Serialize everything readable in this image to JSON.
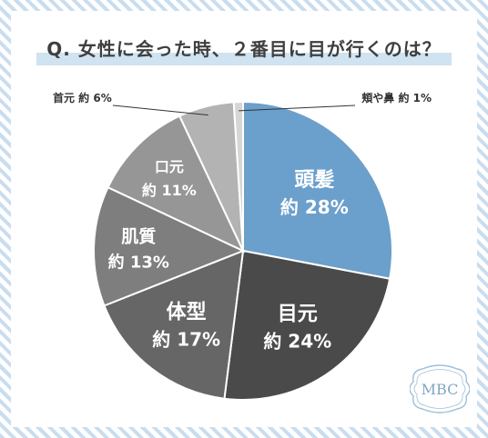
{
  "chart_data": {
    "type": "pie",
    "title": "Q. 女性に会った時、２番目に目が行くのは？",
    "value_prefix": "約",
    "unit": "%",
    "slices": [
      {
        "label": "頭髪",
        "value": 28,
        "color": "#6b9fcc"
      },
      {
        "label": "目元",
        "value": 24,
        "color": "#4a4a4a"
      },
      {
        "label": "体型",
        "value": 17,
        "color": "#666666"
      },
      {
        "label": "肌質",
        "value": 13,
        "color": "#7e7e7e"
      },
      {
        "label": "口元",
        "value": 11,
        "color": "#969696"
      },
      {
        "label": "首元",
        "value": 6,
        "color": "#b3b3b3"
      },
      {
        "label": "頬や鼻",
        "value": 1,
        "color": "#d6d6d6"
      }
    ]
  },
  "logo": {
    "text": "MBC"
  }
}
